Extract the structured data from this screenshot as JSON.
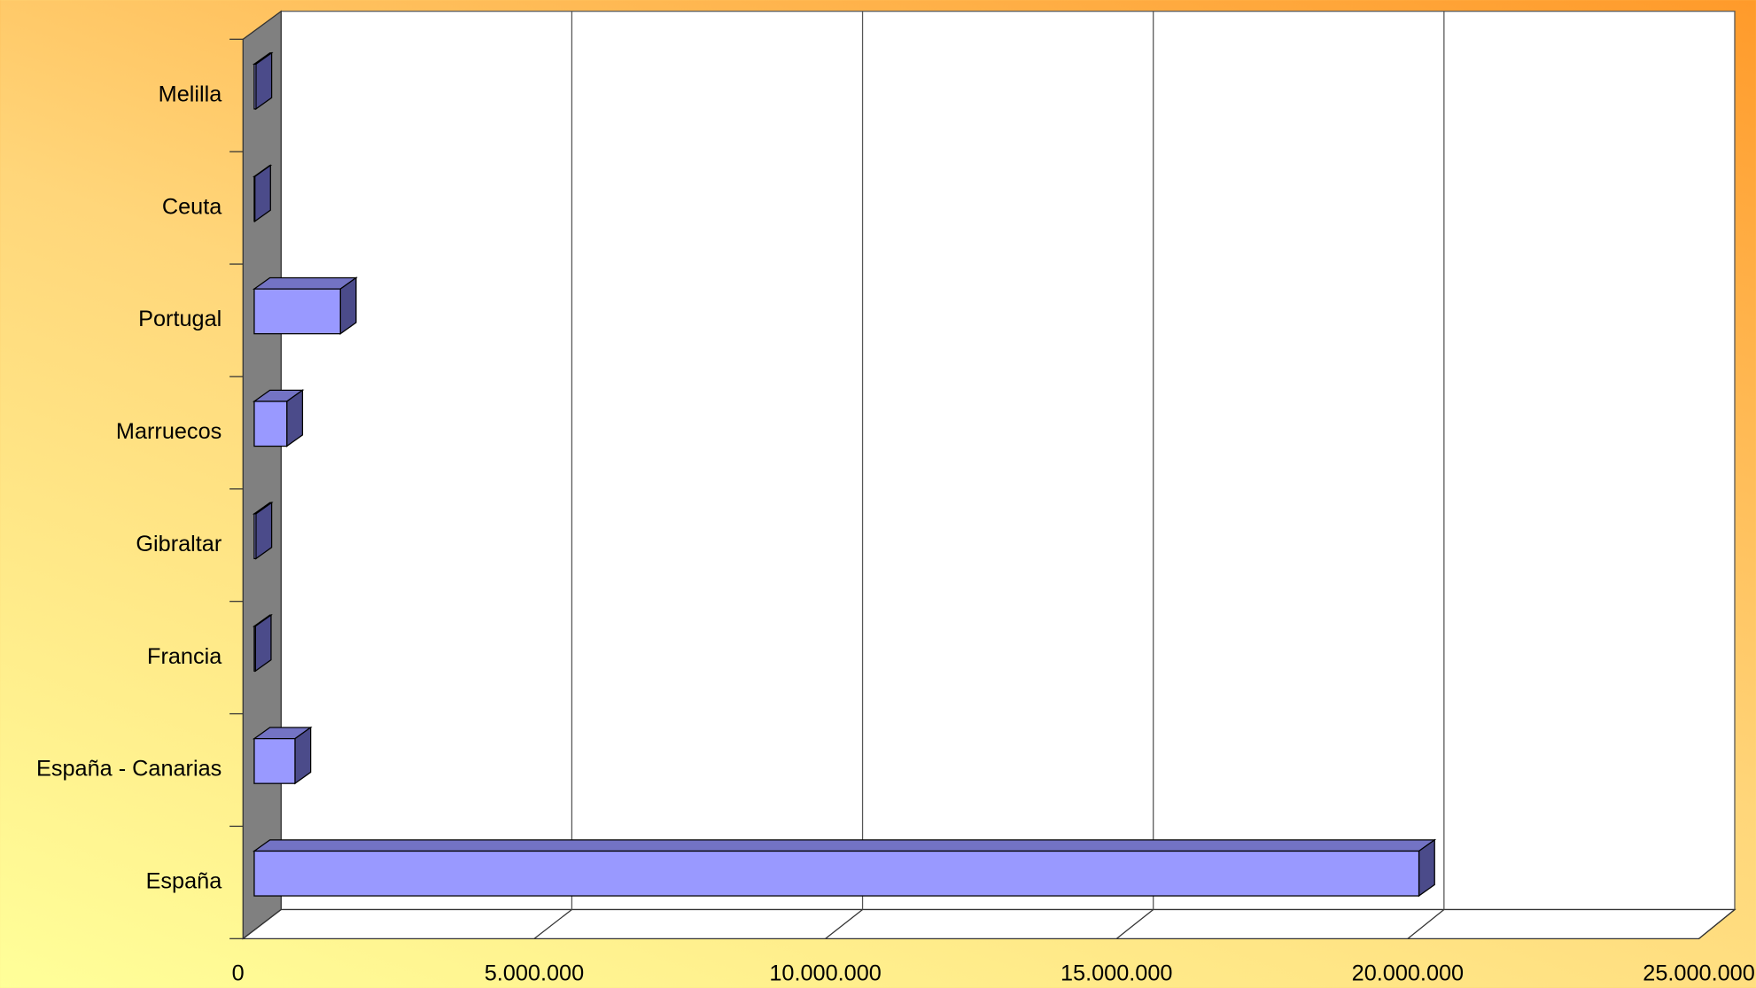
{
  "chart_data": {
    "type": "bar",
    "orientation": "horizontal",
    "3d": true,
    "categories": [
      "España",
      "España - Canarias",
      "Francia",
      "Gibraltar",
      "Marruecos",
      "Portugal",
      "Ceuta",
      "Melilla"
    ],
    "values": [
      20000000,
      700000,
      20000,
      30000,
      560000,
      1480000,
      10000,
      30000
    ],
    "color": "#9999ff",
    "xlim": [
      0,
      25000000
    ],
    "xticks": [
      0,
      {
        "value": 5000000,
        "label": "5.000.000"
      },
      {
        "value": 10000000,
        "label": "10.000.000"
      },
      {
        "value": 15000000,
        "label": "15.000.000"
      },
      {
        "value": 20000000,
        "label": "20.000.000"
      },
      {
        "value": 25000000,
        "label": "25.000.000"
      }
    ],
    "grid": true
  }
}
